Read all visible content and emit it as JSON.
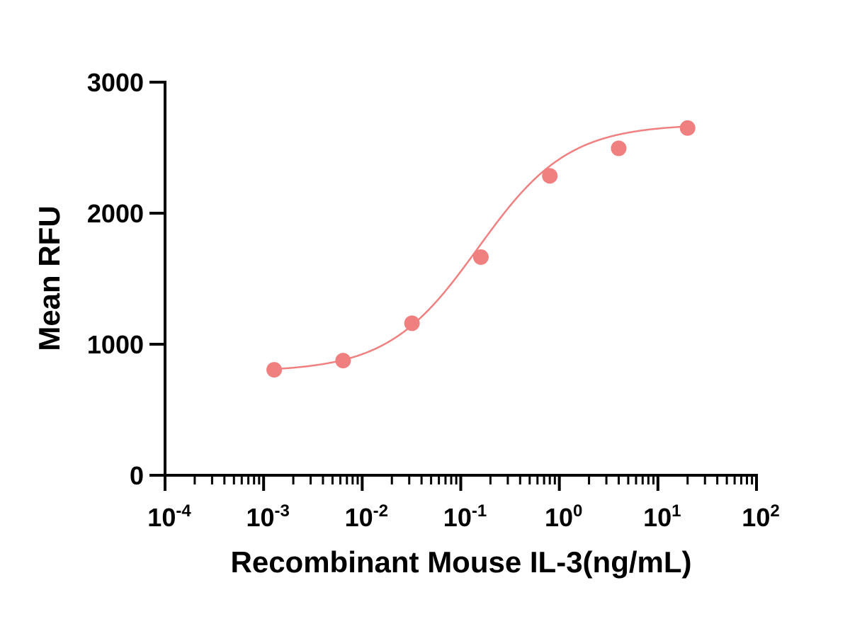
{
  "chart_data": {
    "type": "scatter",
    "title": "",
    "xlabel": "Recombinant Mouse IL-3(ng/mL)",
    "ylabel": "Mean RFU",
    "x_scale": "log10",
    "xlim": [
      0.0001,
      100
    ],
    "ylim": [
      0,
      3000
    ],
    "x_ticks": [
      {
        "value": 0.0001,
        "base": "10",
        "exp": "-4"
      },
      {
        "value": 0.001,
        "base": "10",
        "exp": "-3"
      },
      {
        "value": 0.01,
        "base": "10",
        "exp": "-2"
      },
      {
        "value": 0.1,
        "base": "10",
        "exp": "-1"
      },
      {
        "value": 1,
        "base": "10",
        "exp": "0"
      },
      {
        "value": 10,
        "base": "10",
        "exp": "1"
      },
      {
        "value": 100,
        "base": "10",
        "exp": "2"
      }
    ],
    "y_ticks": [
      {
        "value": 0,
        "label": "0"
      },
      {
        "value": 1000,
        "label": "1000"
      },
      {
        "value": 2000,
        "label": "2000"
      },
      {
        "value": 3000,
        "label": "3000"
      }
    ],
    "grid": false,
    "legend": "none",
    "series": [
      {
        "color": "#f08080",
        "points": [
          {
            "x": 0.00128,
            "y": 805
          },
          {
            "x": 0.0064,
            "y": 875
          },
          {
            "x": 0.032,
            "y": 1160
          },
          {
            "x": 0.16,
            "y": 1665
          },
          {
            "x": 0.8,
            "y": 2285
          },
          {
            "x": 4,
            "y": 2495
          },
          {
            "x": 20,
            "y": 2650
          }
        ],
        "fit": {
          "model": "4PL",
          "bottom": 790,
          "top": 2680,
          "ec50": 0.15,
          "hill": 0.95
        }
      }
    ]
  }
}
